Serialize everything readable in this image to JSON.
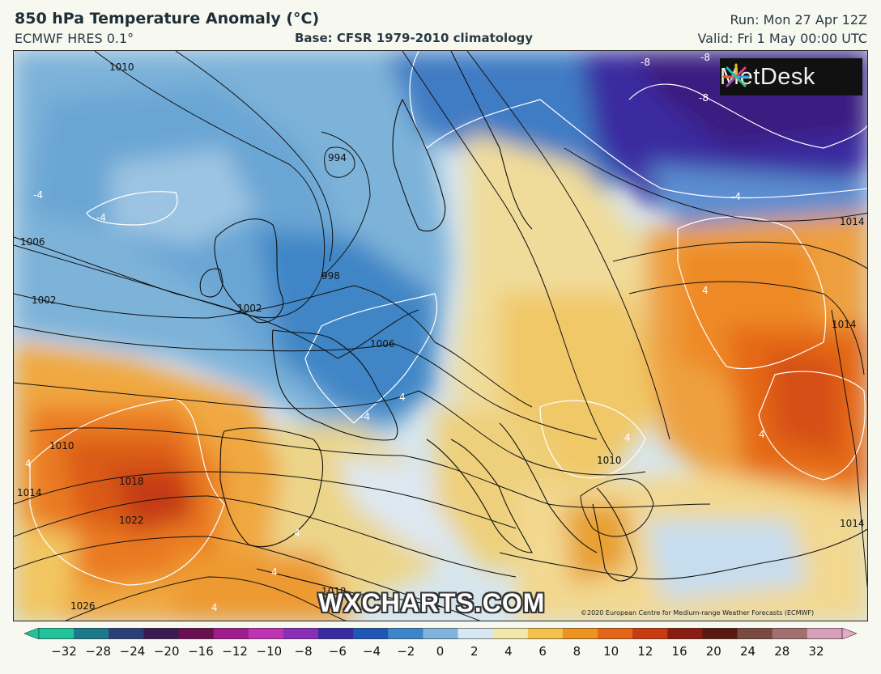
{
  "header": {
    "title": "850 hPa Temperature Anomaly (°C)",
    "model": "ECMWF HRES 0.1°",
    "base": "Base: CFSR 1979-2010 climatology",
    "run": "Run: Mon 27 Apr 12Z",
    "valid": "Valid: Fri 1 May 00:00 UTC"
  },
  "branding": {
    "logo_text": "MetDesk",
    "watermark": "WXCHARTS.COM",
    "credit": "©2020 European Centre for Medium-range Weather Forecasts (ECMWF)"
  },
  "colorbar": {
    "ticks": [
      "−32",
      "−28",
      "−24",
      "−20",
      "−16",
      "−12",
      "−10",
      "−8",
      "−6",
      "−4",
      "−2",
      "0",
      "2",
      "4",
      "6",
      "8",
      "10",
      "12",
      "16",
      "20",
      "24",
      "28",
      "32"
    ],
    "colors": [
      "#1fc49a",
      "#1a7a8c",
      "#2a3f78",
      "#3a1a50",
      "#6a1050",
      "#a01c8c",
      "#c032b4",
      "#8a2dbb",
      "#3a2aa0",
      "#1f57b8",
      "#3b86c8",
      "#7fb4de",
      "#d8e8f2",
      "#f2e8a8",
      "#f2c24a",
      "#ee9220",
      "#e56415",
      "#c83a10",
      "#8a1d10",
      "#5a1a12",
      "#7a4a40",
      "#a07070",
      "#d8a0b8"
    ]
  },
  "map": {
    "isobar_labels": [
      "1010",
      "1006",
      "1002",
      "998",
      "994",
      "1002",
      "1006",
      "1010",
      "1018",
      "1014",
      "1022",
      "1026",
      "1010",
      "1014",
      "1014",
      "1014",
      "1018"
    ],
    "anomaly_labels": [
      "-8",
      "-8",
      "-8",
      "-4",
      "-4",
      "-4",
      "-4",
      "4",
      "4",
      "4",
      "4",
      "4",
      "4",
      "4",
      "4"
    ]
  }
}
